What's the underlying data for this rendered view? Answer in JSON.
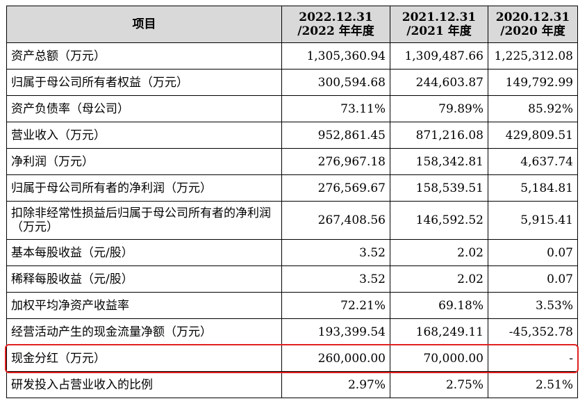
{
  "table": {
    "headers": [
      {
        "line1": "项目",
        "line2": ""
      },
      {
        "line1": "2022.12.31",
        "line2": "/2022 年年度"
      },
      {
        "line1": "2021.12.31",
        "line2": "/2021 年度"
      },
      {
        "line1": "2020.12.31",
        "line2": "/2020 年度"
      }
    ],
    "rows": [
      {
        "label": "资产总额（万元）",
        "v2022": "1,305,360.94",
        "v2021": "1,309,487.66",
        "v2020": "1,225,312.08"
      },
      {
        "label": "归属于母公司所有者权益（万元）",
        "v2022": "300,594.68",
        "v2021": "244,603.87",
        "v2020": "149,792.99"
      },
      {
        "label": "资产负债率（母公司）",
        "v2022": "73.11%",
        "v2021": "79.89%",
        "v2020": "85.92%"
      },
      {
        "label": "营业收入（万元）",
        "v2022": "952,861.45",
        "v2021": "871,216.08",
        "v2020": "429,809.51"
      },
      {
        "label": "净利润（万元）",
        "v2022": "276,967.18",
        "v2021": "158,342.81",
        "v2020": "4,637.74"
      },
      {
        "label": "归属于母公司所有者的净利润（万元）",
        "v2022": "276,569.67",
        "v2021": "158,539.51",
        "v2020": "5,184.81"
      },
      {
        "label": "扣除非经常性损益后归属于母公司所有者的净利润（万元）",
        "v2022": "267,408.56",
        "v2021": "146,592.52",
        "v2020": "5,915.41"
      },
      {
        "label": "基本每股收益（元/股）",
        "v2022": "3.52",
        "v2021": "2.02",
        "v2020": "0.07"
      },
      {
        "label": "稀释每股收益（元/股）",
        "v2022": "3.52",
        "v2021": "2.02",
        "v2020": "0.07"
      },
      {
        "label": "加权平均净资产收益率",
        "v2022": "72.21%",
        "v2021": "69.18%",
        "v2020": "3.53%"
      },
      {
        "label": "经营活动产生的现金流量净额（万元）",
        "v2022": "193,399.54",
        "v2021": "168,249.11",
        "v2020": "-45,352.78"
      },
      {
        "label": "现金分红（万元）",
        "v2022": "260,000.00",
        "v2021": "70,000.00",
        "v2020": "-"
      },
      {
        "label": "研发投入占营业收入的比例",
        "v2022": "2.97%",
        "v2021": "2.75%",
        "v2020": "2.51%"
      }
    ],
    "highlight_row_index": 11,
    "highlight_color": "#e02020",
    "header_bg": "#d9d9d9"
  }
}
